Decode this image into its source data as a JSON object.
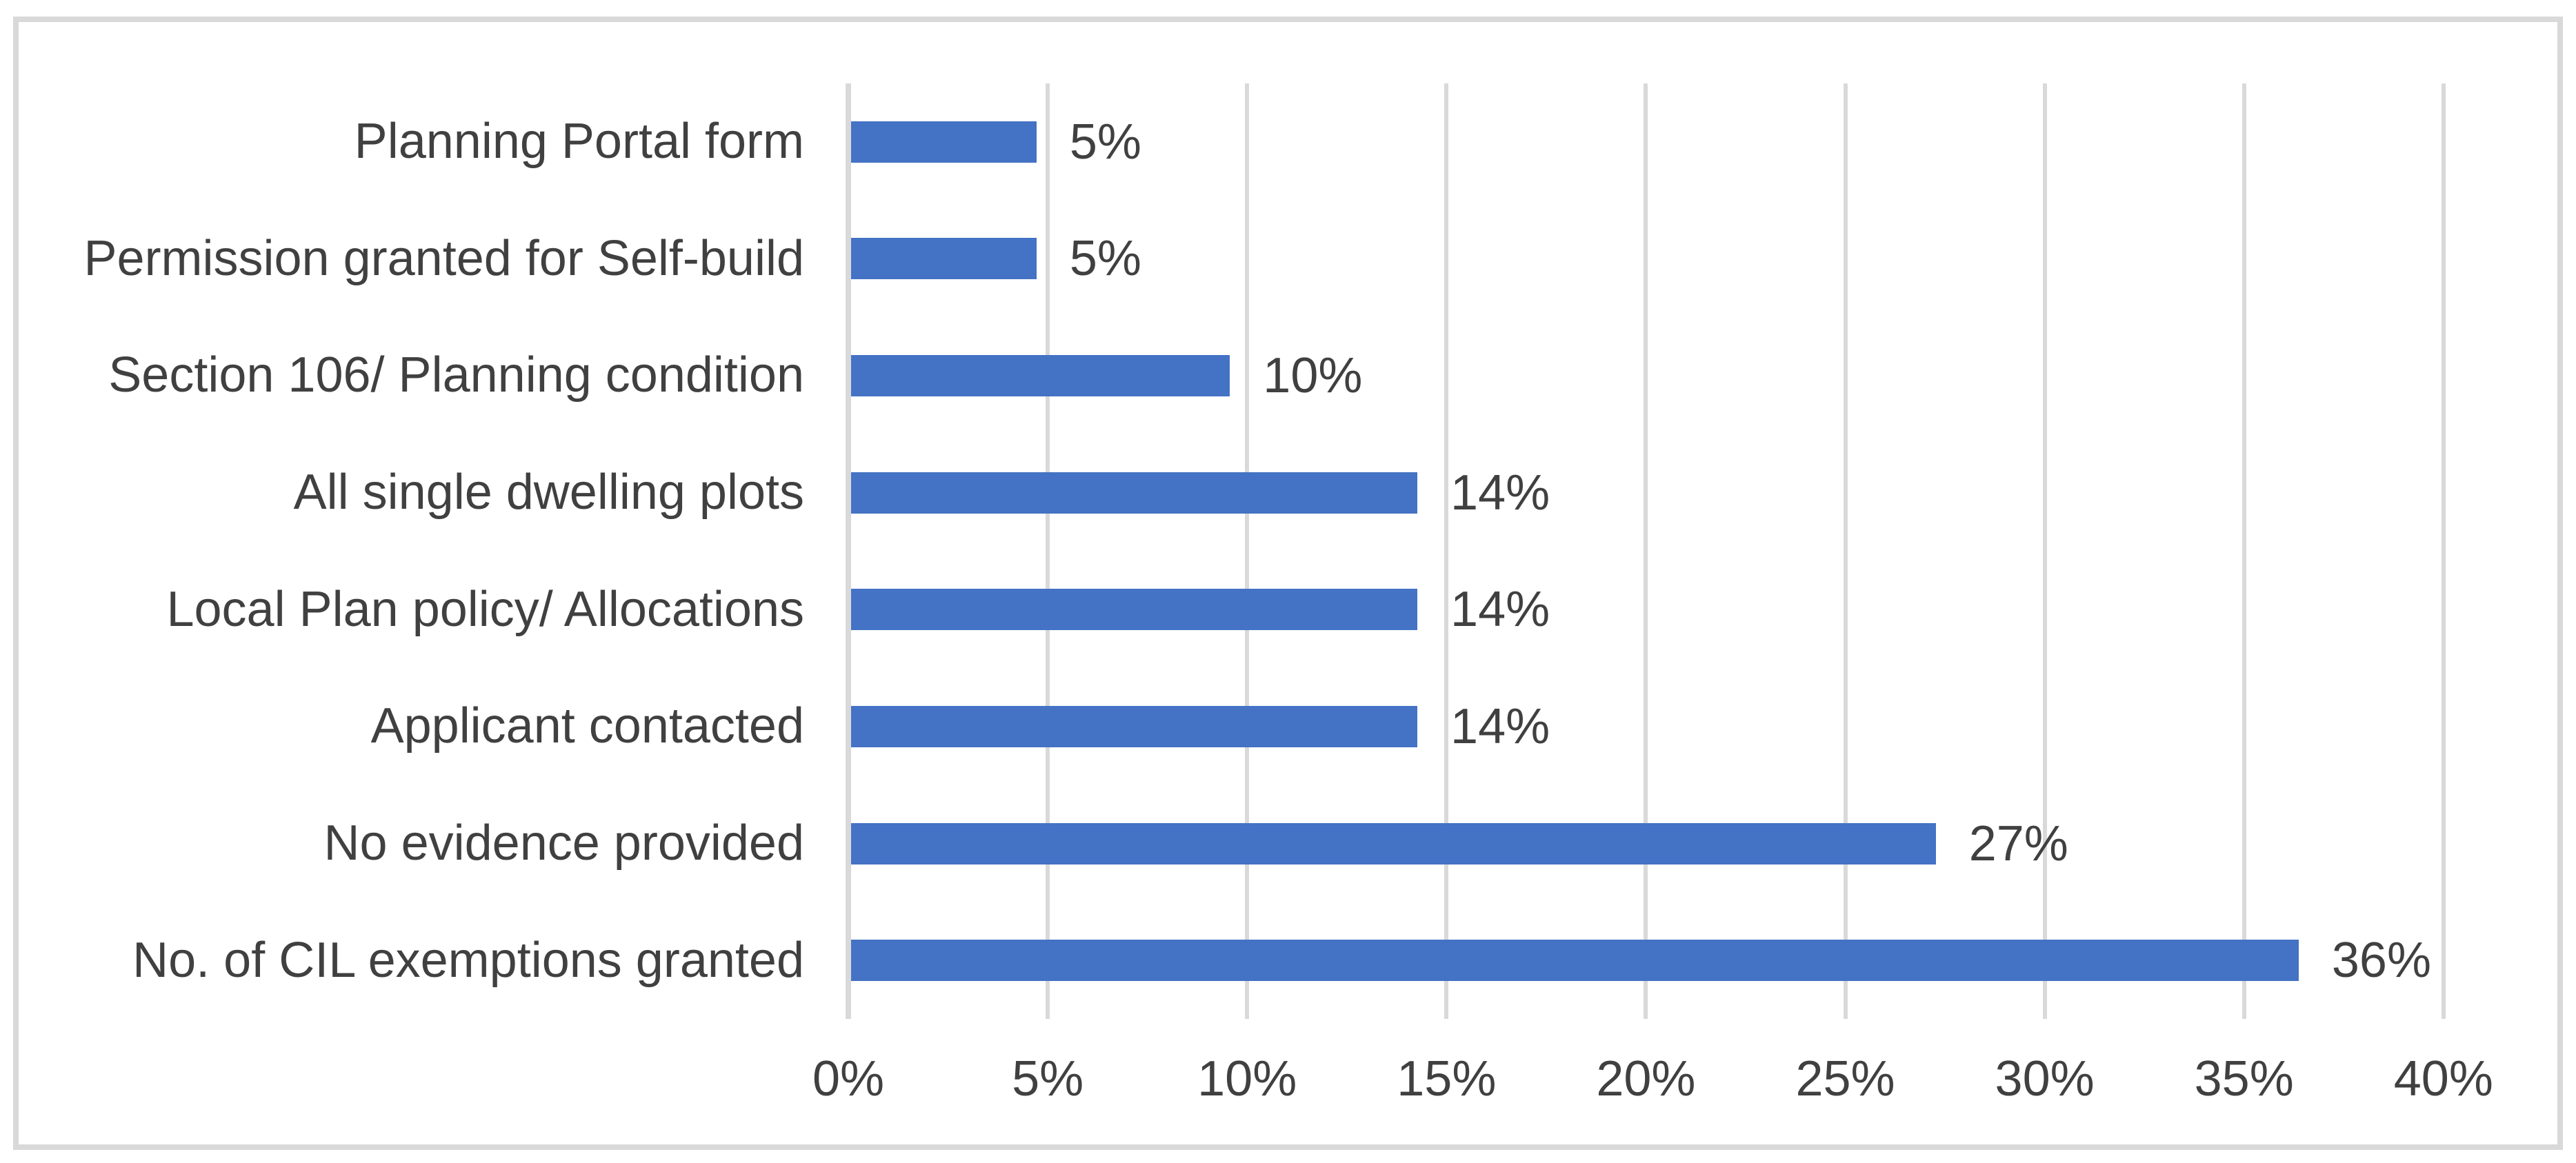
{
  "chart_data": {
    "type": "bar",
    "orientation": "horizontal",
    "title": "",
    "categories": [
      "Planning Portal form",
      "Permission granted for Self-build",
      "Section 106/ Planning condition",
      "All single dwelling plots",
      "Local Plan policy/ Allocations",
      "Applicant contacted",
      "No evidence provided",
      "No. of CIL exemptions granted"
    ],
    "values": [
      5,
      5,
      10,
      14,
      14,
      14,
      27,
      36
    ],
    "value_labels": [
      "5%",
      "5%",
      "10%",
      "14%",
      "14%",
      "14%",
      "27%",
      "36%"
    ],
    "plotted_values": [
      4.65,
      4.65,
      9.5,
      14.2,
      14.2,
      14.2,
      27.2,
      36.3
    ],
    "x_axis": {
      "min": 0,
      "max": 40,
      "step": 5,
      "tick_labels": [
        "0%",
        "5%",
        "10%",
        "15%",
        "20%",
        "25%",
        "30%",
        "35%",
        "40%"
      ]
    },
    "legend": false,
    "grid": true,
    "colors": {
      "bar": "#4472C4",
      "gridline": "#D9D9D9",
      "axis_line": "#D9D9D9",
      "frame_border": "#D9D9D9",
      "text": "#404040",
      "background": "#FFFFFF"
    }
  }
}
